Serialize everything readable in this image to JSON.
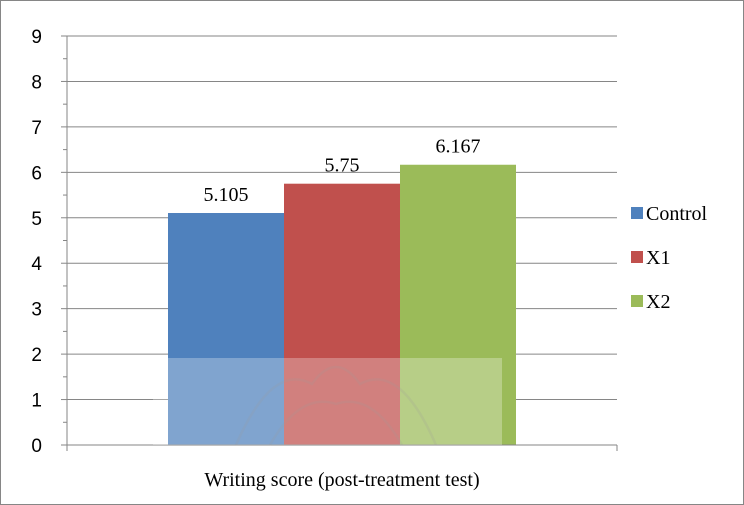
{
  "chart_data": {
    "type": "bar",
    "categories": [
      "Writing score (post-treatment test)"
    ],
    "series": [
      {
        "name": "Control",
        "values": [
          5.105
        ],
        "color": "#4f81bd",
        "label": "5.105"
      },
      {
        "name": "X1",
        "values": [
          5.75
        ],
        "color": "#c0504d",
        "label": "5.75"
      },
      {
        "name": "X2",
        "values": [
          6.167
        ],
        "color": "#9bbb59",
        "label": "6.167"
      }
    ],
    "title": "",
    "xlabel": "",
    "ylabel": "",
    "ylim": [
      0,
      9
    ],
    "yticks": [
      0,
      1,
      2,
      3,
      4,
      5,
      6,
      7,
      8,
      9
    ],
    "grid": true,
    "legend_position": "right"
  }
}
